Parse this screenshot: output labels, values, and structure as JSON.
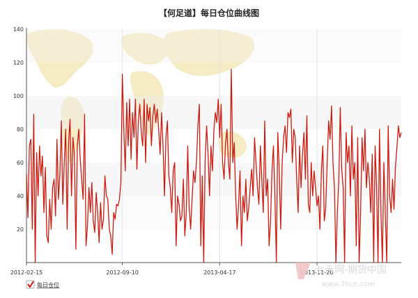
{
  "chart_data": {
    "type": "line",
    "title": "【何足道】每日仓位曲线图",
    "xlabel": "",
    "ylabel": "",
    "ylim": [
      0,
      140
    ],
    "yticks": [
      "20",
      "40",
      "60",
      "80",
      "100",
      "120",
      "140"
    ],
    "xticks": [
      "2012-02-15",
      "2012-09-10",
      "2013-04-17",
      "2013-11-20"
    ],
    "grid": true,
    "legend_position": "bottom-left",
    "series": [
      {
        "name": "每日仓位",
        "color": "#cc1a0f",
        "values": [
          53,
          27,
          70,
          74,
          20,
          89,
          0,
          66,
          40,
          70,
          52,
          64,
          30,
          57,
          16,
          12,
          38,
          20,
          45,
          50,
          28,
          74,
          38,
          53,
          85,
          35,
          60,
          80,
          20,
          72,
          86,
          40,
          75,
          65,
          8,
          70,
          80,
          62,
          50,
          38,
          89,
          10,
          22,
          45,
          30,
          48,
          25,
          18,
          42,
          30,
          12,
          36,
          20,
          26,
          52,
          40,
          38,
          20,
          16,
          5,
          30,
          26,
          35,
          34,
          38,
          48,
          113,
          80,
          55,
          96,
          70,
          98,
          62,
          90,
          75,
          98,
          56,
          85,
          95,
          78,
          70,
          98,
          60,
          95,
          85,
          93,
          70,
          88,
          95,
          84,
          92,
          80,
          65,
          90,
          70,
          40,
          75,
          85,
          52,
          45,
          30,
          55,
          60,
          10,
          40,
          35,
          25,
          28,
          50,
          16,
          30,
          70,
          33,
          20,
          38,
          55,
          48,
          60,
          82,
          95,
          10,
          52,
          0,
          62,
          82,
          65,
          40,
          70,
          55,
          79,
          90,
          84,
          98,
          75,
          95,
          60,
          50,
          71,
          80,
          60,
          50,
          116,
          60,
          72,
          40,
          20,
          35,
          55,
          10,
          40,
          30,
          50,
          25,
          33,
          45,
          56,
          40,
          75,
          60,
          45,
          35,
          70,
          50,
          30,
          85,
          40,
          50,
          10,
          25,
          55,
          70,
          40,
          0,
          78,
          55,
          20,
          60,
          75,
          82,
          66,
          90,
          87,
          92,
          60,
          80,
          75,
          50,
          30,
          70,
          45,
          65,
          78,
          50,
          88,
          35,
          30,
          60,
          40,
          55,
          45,
          34,
          40,
          20,
          55,
          70,
          25,
          33,
          60,
          85,
          74,
          94,
          60,
          45,
          0,
          30,
          50,
          93,
          56,
          45,
          0,
          78,
          60,
          70,
          40,
          82,
          50,
          60,
          10,
          75,
          0,
          30,
          75,
          55,
          80,
          45,
          60,
          50,
          30,
          65,
          0,
          70,
          45,
          0,
          80,
          30,
          0,
          60,
          30,
          0,
          82,
          40,
          30,
          50,
          32,
          58,
          69,
          82,
          75,
          78
        ]
      }
    ]
  }
}
